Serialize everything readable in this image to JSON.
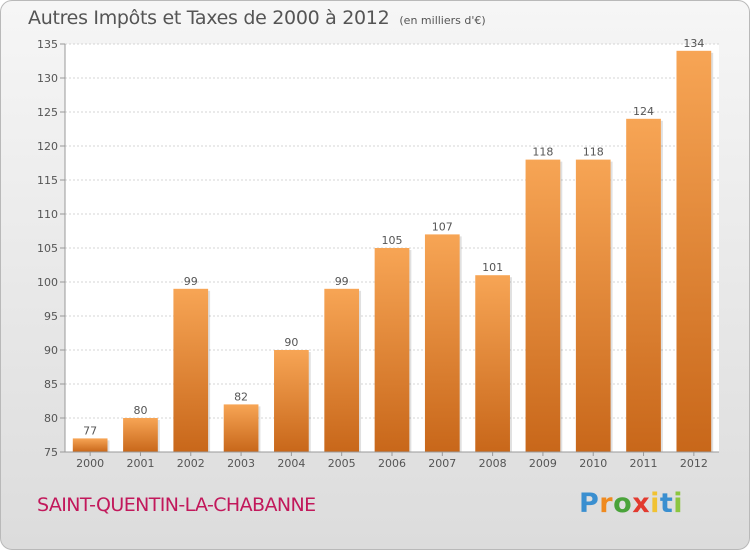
{
  "header": {
    "title": "Autres Impôts et Taxes de 2000 à 2012",
    "subtitle": "(en milliers d'€)"
  },
  "footer": {
    "location": "SAINT-QUENTIN-LA-CHABANNE",
    "logo": [
      "P",
      "r",
      "o",
      "x",
      "i",
      "t",
      "i"
    ],
    "logo_colors": [
      "#3a8fd0",
      "#ef8a1f",
      "#4aa33a",
      "#e23a2f",
      "#f1c232",
      "#3a8fd0",
      "#8cc63f"
    ]
  },
  "chart_data": {
    "type": "bar",
    "title": "Autres Impôts et Taxes de 2000 à 2012",
    "subtitle": "(en milliers d'€)",
    "categories": [
      "2000",
      "2001",
      "2002",
      "2003",
      "2004",
      "2005",
      "2006",
      "2007",
      "2008",
      "2009",
      "2010",
      "2011",
      "2012"
    ],
    "values": [
      77,
      80,
      99,
      82,
      90,
      99,
      105,
      107,
      101,
      118,
      118,
      124,
      134
    ],
    "ylim": [
      75,
      135
    ],
    "yticks": [
      75,
      80,
      85,
      90,
      95,
      100,
      105,
      110,
      115,
      120,
      125,
      130,
      135
    ],
    "grid": true,
    "bar_color_top": "#f7a555",
    "bar_color_bottom": "#c8671a",
    "xlabel": "",
    "ylabel": ""
  }
}
